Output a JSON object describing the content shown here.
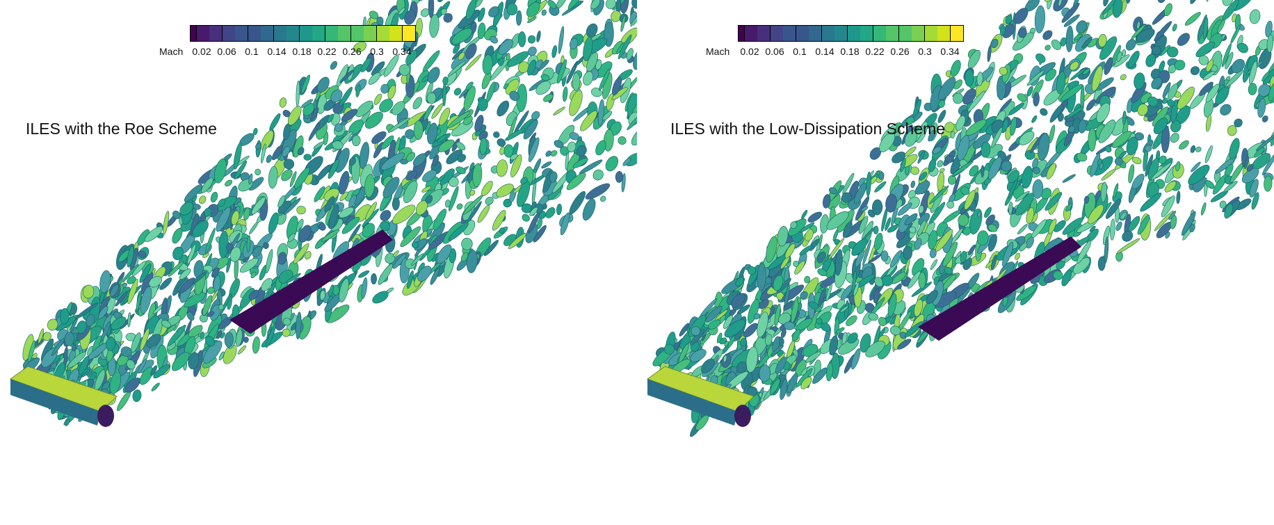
{
  "panels": [
    {
      "title": "ILES with the Roe Scheme",
      "variant": "roe"
    },
    {
      "title": "ILES with the Low-Dissipation Scheme",
      "variant": "low-dissipation"
    }
  ],
  "colorbar": {
    "label": "Mach",
    "ticks": [
      "0.02",
      "0.06",
      "0.1",
      "0.14",
      "0.18",
      "0.22",
      "0.26",
      "0.3",
      "0.34"
    ],
    "colormap": "viridis",
    "colors": [
      "#440154",
      "#481a6c",
      "#472f7d",
      "#414487",
      "#39568c",
      "#31688e",
      "#2a788e",
      "#23888e",
      "#1f988b",
      "#22a884",
      "#35b779",
      "#54c568",
      "#7ad151",
      "#a5db36",
      "#d2e21b",
      "#fde725"
    ]
  }
}
